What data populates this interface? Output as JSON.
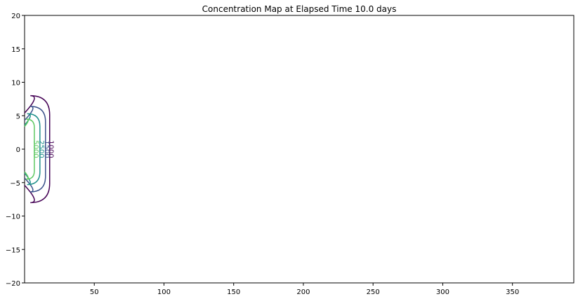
{
  "chart_data": {
    "type": "contour",
    "title": "Concentration Map at Elapsed Time 10.0 days",
    "xlabel": "",
    "ylabel": "",
    "xlim": [
      0,
      394
    ],
    "ylim": [
      -20,
      20
    ],
    "x_ticks": [
      50,
      100,
      150,
      200,
      250,
      300,
      350
    ],
    "y_ticks": [
      20,
      15,
      10,
      5,
      0,
      -5,
      -10,
      -15,
      -20
    ],
    "y_tick_labels": [
      "20",
      "15",
      "10",
      "5",
      "0",
      "−5",
      "−10",
      "−15",
      "−20"
    ],
    "grid": false,
    "contour_levels": [
      {
        "level": "1000",
        "color": "#440154",
        "half_width": 8.0,
        "x_extent": 18.0
      },
      {
        "level": "1500",
        "color": "#3b528b",
        "half_width": 6.4,
        "x_extent": 15.0
      },
      {
        "level": "2500",
        "color": "#21918c",
        "half_width": 5.3,
        "x_extent": 11.0
      },
      {
        "level": "5000",
        "color": "#5ec962",
        "half_width": 4.5,
        "x_extent": 7.0
      }
    ],
    "contour_labels": [
      "1000",
      "1500",
      "2500",
      "5000"
    ]
  }
}
